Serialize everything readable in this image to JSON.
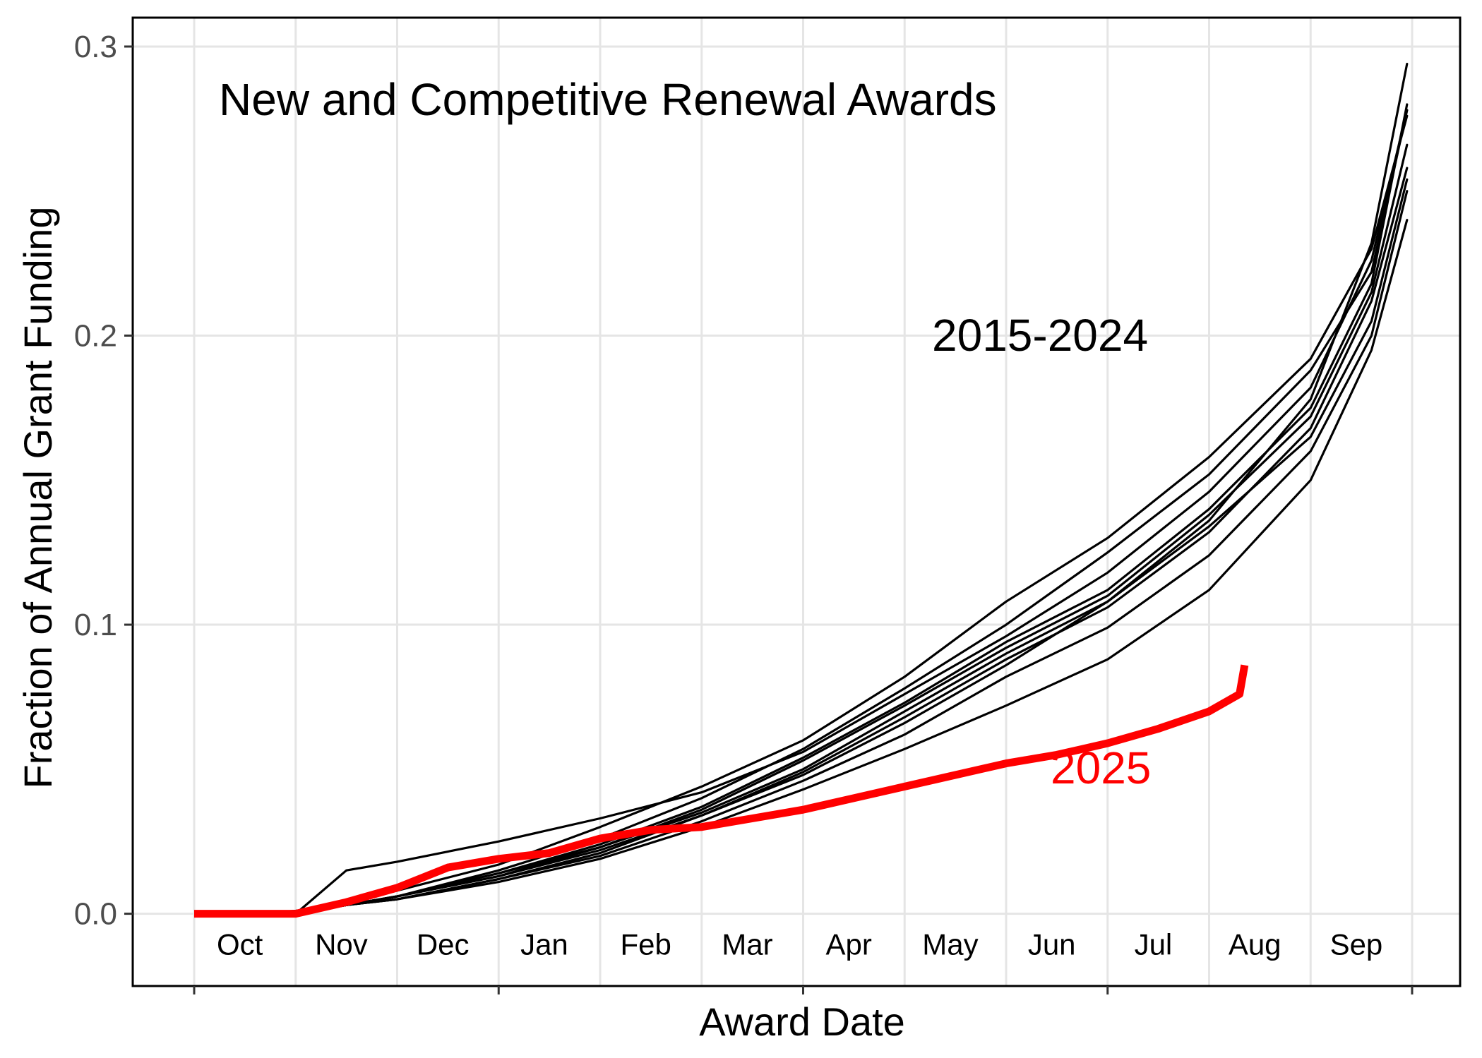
{
  "chart_data": {
    "type": "line",
    "title": "",
    "xlabel": "Award Date",
    "ylabel": "Fraction of Annual Grant Funding",
    "ylim": [
      -0.025,
      0.31
    ],
    "y_ticks": [
      "0.0",
      "0.1",
      "0.2",
      "0.3"
    ],
    "y_tick_values": [
      0,
      0.1,
      0.2,
      0.3
    ],
    "months": [
      "Oct",
      "Nov",
      "Dec",
      "Jan",
      "Feb",
      "Mar",
      "Apr",
      "May",
      "Jun",
      "Jul",
      "Aug",
      "Sep"
    ],
    "grid": true,
    "colors": {
      "history": "#000000",
      "current": "#ff0000",
      "grid": "#e5e5e5",
      "axis": "#000000"
    },
    "annotations": [
      {
        "text": "New and Competitive Renewal Awards",
        "color": "#000000"
      },
      {
        "text": "2015-2024",
        "color": "#000000"
      },
      {
        "text": "2025",
        "color": "#ff0000"
      }
    ],
    "x_unit": "month index (0 = Oct 1, 12 = end of Sep)",
    "series": [
      {
        "group": "2015-2024",
        "x": [
          0.6,
          1.0,
          1.5,
          2.0,
          3.0,
          4.0,
          5.0,
          6.0,
          7.0,
          8.0,
          9.0,
          10.0,
          11.0,
          11.6,
          11.95
        ],
        "y": [
          0.0,
          0.0,
          0.003,
          0.006,
          0.013,
          0.022,
          0.034,
          0.048,
          0.066,
          0.086,
          0.108,
          0.136,
          0.178,
          0.232,
          0.294
        ]
      },
      {
        "group": "2015-2024",
        "x": [
          0.6,
          1.0,
          1.5,
          2.0,
          3.0,
          4.0,
          5.0,
          6.0,
          7.0,
          8.0,
          9.0,
          10.0,
          11.0,
          11.6,
          11.95
        ],
        "y": [
          0.0,
          0.0,
          0.003,
          0.006,
          0.015,
          0.026,
          0.04,
          0.057,
          0.078,
          0.1,
          0.125,
          0.152,
          0.188,
          0.222,
          0.278
        ]
      },
      {
        "group": "2015-2024",
        "x": [
          0.6,
          1.0,
          1.5,
          2.0,
          3.0,
          4.0,
          5.0,
          6.0,
          7.0,
          8.0,
          9.0,
          10.0,
          11.0,
          11.6,
          11.95
        ],
        "y": [
          0.0,
          0.0,
          0.004,
          0.008,
          0.017,
          0.03,
          0.044,
          0.06,
          0.082,
          0.108,
          0.13,
          0.158,
          0.192,
          0.23,
          0.276
        ]
      },
      {
        "group": "2015-2024",
        "x": [
          0.6,
          1.0,
          1.5,
          2.0,
          3.0,
          4.0,
          5.0,
          6.0,
          7.0,
          8.0,
          9.0,
          10.0,
          11.0,
          11.6,
          11.95
        ],
        "y": [
          0.0,
          0.0,
          0.003,
          0.006,
          0.014,
          0.023,
          0.036,
          0.053,
          0.072,
          0.092,
          0.11,
          0.138,
          0.172,
          0.215,
          0.266
        ]
      },
      {
        "group": "2015-2024",
        "x": [
          0.6,
          1.0,
          1.5,
          2.0,
          3.0,
          4.0,
          5.0,
          6.0,
          7.0,
          8.0,
          9.0,
          10.0,
          11.0,
          11.6,
          11.95
        ],
        "y": [
          0.0,
          0.0,
          0.003,
          0.005,
          0.012,
          0.021,
          0.034,
          0.049,
          0.068,
          0.088,
          0.106,
          0.132,
          0.168,
          0.212,
          0.258
        ]
      },
      {
        "group": "2015-2024",
        "x": [
          0.6,
          1.0,
          1.5,
          2.0,
          3.0,
          4.0,
          5.0,
          6.0,
          7.0,
          8.0,
          9.0,
          10.0,
          11.0,
          11.6,
          11.95
        ],
        "y": [
          0.0,
          0.0,
          0.003,
          0.006,
          0.013,
          0.023,
          0.035,
          0.05,
          0.07,
          0.09,
          0.108,
          0.134,
          0.165,
          0.205,
          0.254
        ]
      },
      {
        "group": "2015-2024",
        "x": [
          0.6,
          1.0,
          1.5,
          2.0,
          3.0,
          4.0,
          5.0,
          6.0,
          7.0,
          8.0,
          9.0,
          10.0,
          11.0,
          11.6,
          11.95
        ],
        "y": [
          0.0,
          0.0,
          0.003,
          0.005,
          0.012,
          0.02,
          0.032,
          0.046,
          0.062,
          0.082,
          0.099,
          0.124,
          0.16,
          0.2,
          0.25
        ]
      },
      {
        "group": "2015-2024",
        "x": [
          0.6,
          1.0,
          1.5,
          2.0,
          3.0,
          4.0,
          5.0,
          6.0,
          7.0,
          8.0,
          9.0,
          10.0,
          11.0,
          11.6,
          11.95
        ],
        "y": [
          0.0,
          0.0,
          0.003,
          0.005,
          0.011,
          0.019,
          0.03,
          0.043,
          0.057,
          0.072,
          0.088,
          0.112,
          0.15,
          0.195,
          0.24
        ]
      },
      {
        "group": "2015-2024",
        "x": [
          0.6,
          1.0,
          1.5,
          2.0,
          3.0,
          4.0,
          5.0,
          6.0,
          7.0,
          8.0,
          9.0,
          10.0,
          11.0,
          11.6,
          11.95
        ],
        "y": [
          0.0,
          0.001,
          0.003,
          0.006,
          0.014,
          0.024,
          0.037,
          0.054,
          0.073,
          0.094,
          0.112,
          0.14,
          0.175,
          0.218,
          0.28
        ]
      },
      {
        "group": "2015-2024",
        "x": [
          0.6,
          1.0,
          1.5,
          2.0,
          3.0,
          4.0,
          5.0,
          6.0,
          7.0,
          8.0,
          9.0,
          10.0,
          11.0,
          11.6,
          11.95
        ],
        "y": [
          0.0,
          0.0,
          0.015,
          0.018,
          0.025,
          0.033,
          0.042,
          0.056,
          0.076,
          0.096,
          0.118,
          0.146,
          0.182,
          0.226,
          0.278
        ]
      },
      {
        "group": "2025",
        "x": [
          0.0,
          0.5,
          1.0,
          1.5,
          2.0,
          2.5,
          3.0,
          3.5,
          4.0,
          4.5,
          5.0,
          5.5,
          6.0,
          6.5,
          7.0,
          7.5,
          8.0,
          8.5,
          9.0,
          9.5,
          10.0,
          10.3,
          10.35
        ],
        "y": [
          0.0,
          0.0,
          0.0,
          0.004,
          0.009,
          0.016,
          0.019,
          0.021,
          0.026,
          0.029,
          0.03,
          0.033,
          0.036,
          0.04,
          0.044,
          0.048,
          0.052,
          0.055,
          0.059,
          0.064,
          0.07,
          0.076,
          0.086
        ]
      }
    ]
  }
}
